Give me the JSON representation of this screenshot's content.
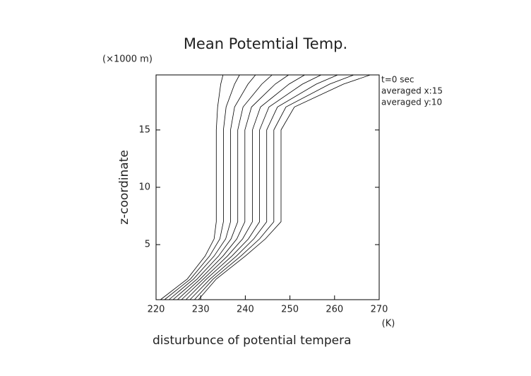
{
  "chart_data": {
    "type": "line",
    "title": "Mean Potemtial Temp.",
    "y_unit": "(×1000 m)",
    "y_label": "z-coordinate",
    "x_unit": "(K)",
    "x_label": "disturbunce of potential tempera",
    "annotations": [
      "t=0 sec",
      "averaged  x:15",
      "averaged  y:10"
    ],
    "xlim": [
      220,
      270
    ],
    "xticks": [
      220,
      230,
      240,
      250,
      260,
      270
    ],
    "ylim": [
      0.2,
      19.8
    ],
    "yticks": [
      5,
      10,
      15
    ],
    "color": "#000000",
    "y": [
      0.2,
      2,
      4,
      5.5,
      7,
      10,
      15,
      17,
      19,
      19.8
    ],
    "series": [
      {
        "values": [
          221,
          227,
          231,
          233,
          233.5,
          233.5,
          233.5,
          233.8,
          234.5,
          235
        ]
      },
      {
        "values": [
          221.9,
          227.7,
          232,
          234.3,
          235.1,
          235.1,
          235.1,
          235.7,
          237.6,
          238.7
        ]
      },
      {
        "values": [
          222.9,
          228.4,
          233,
          235.6,
          236.7,
          236.7,
          236.7,
          237.6,
          240.6,
          242.3
        ]
      },
      {
        "values": [
          223.8,
          229.2,
          234,
          236.8,
          238.3,
          238.3,
          238.3,
          239.5,
          243.7,
          246
        ]
      },
      {
        "values": [
          224.8,
          229.9,
          235,
          238.1,
          239.9,
          239.9,
          239.9,
          241.4,
          246.7,
          249.7
        ]
      },
      {
        "values": [
          225.7,
          230.6,
          236,
          239.4,
          241.6,
          241.6,
          241.6,
          243.4,
          249.8,
          253.3
        ]
      },
      {
        "values": [
          226.7,
          231.3,
          237,
          240.7,
          243.2,
          243.2,
          243.2,
          245.3,
          252.8,
          257
        ]
      },
      {
        "values": [
          227.6,
          232.1,
          238,
          241.9,
          244.8,
          244.8,
          244.8,
          247.2,
          255.9,
          260.7
        ]
      },
      {
        "values": [
          228.6,
          232.8,
          239,
          243.2,
          246.4,
          246.4,
          246.4,
          249.1,
          258.9,
          264.3
        ]
      },
      {
        "values": [
          229.5,
          233.5,
          240,
          244.5,
          248,
          248,
          248,
          251,
          262,
          268
        ]
      }
    ]
  }
}
